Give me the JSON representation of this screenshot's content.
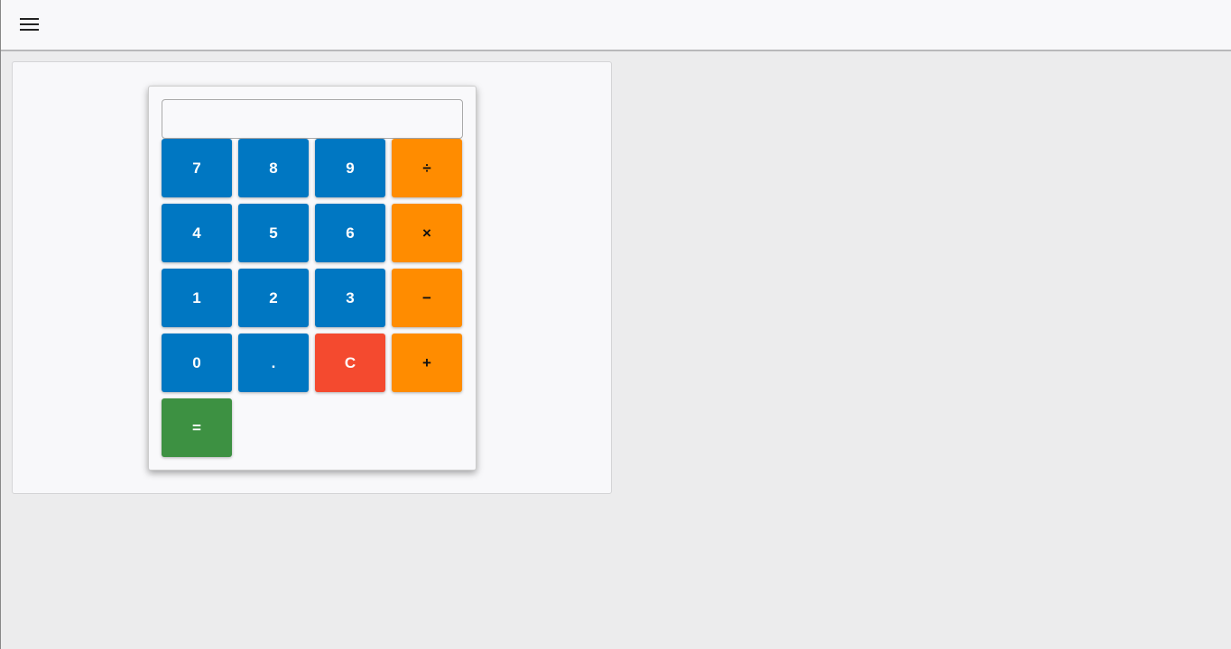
{
  "topbar": {
    "menu_icon": "hamburger-menu-icon"
  },
  "calculator": {
    "display_value": "",
    "colors": {
      "number": "#0077c2",
      "operator": "#ff8c00",
      "clear": "#f44a2f",
      "equals": "#3d9142"
    },
    "buttons": [
      {
        "label": "7",
        "type": "num"
      },
      {
        "label": "8",
        "type": "num"
      },
      {
        "label": "9",
        "type": "num"
      },
      {
        "label": "÷",
        "type": "op"
      },
      {
        "label": "4",
        "type": "num"
      },
      {
        "label": "5",
        "type": "num"
      },
      {
        "label": "6",
        "type": "num"
      },
      {
        "label": "×",
        "type": "op"
      },
      {
        "label": "1",
        "type": "num"
      },
      {
        "label": "2",
        "type": "num"
      },
      {
        "label": "3",
        "type": "num"
      },
      {
        "label": "−",
        "type": "op"
      },
      {
        "label": "0",
        "type": "num"
      },
      {
        "label": ".",
        "type": "num"
      },
      {
        "label": "C",
        "type": "clr"
      },
      {
        "label": "+",
        "type": "op"
      },
      {
        "label": "=",
        "type": "eq"
      }
    ]
  }
}
